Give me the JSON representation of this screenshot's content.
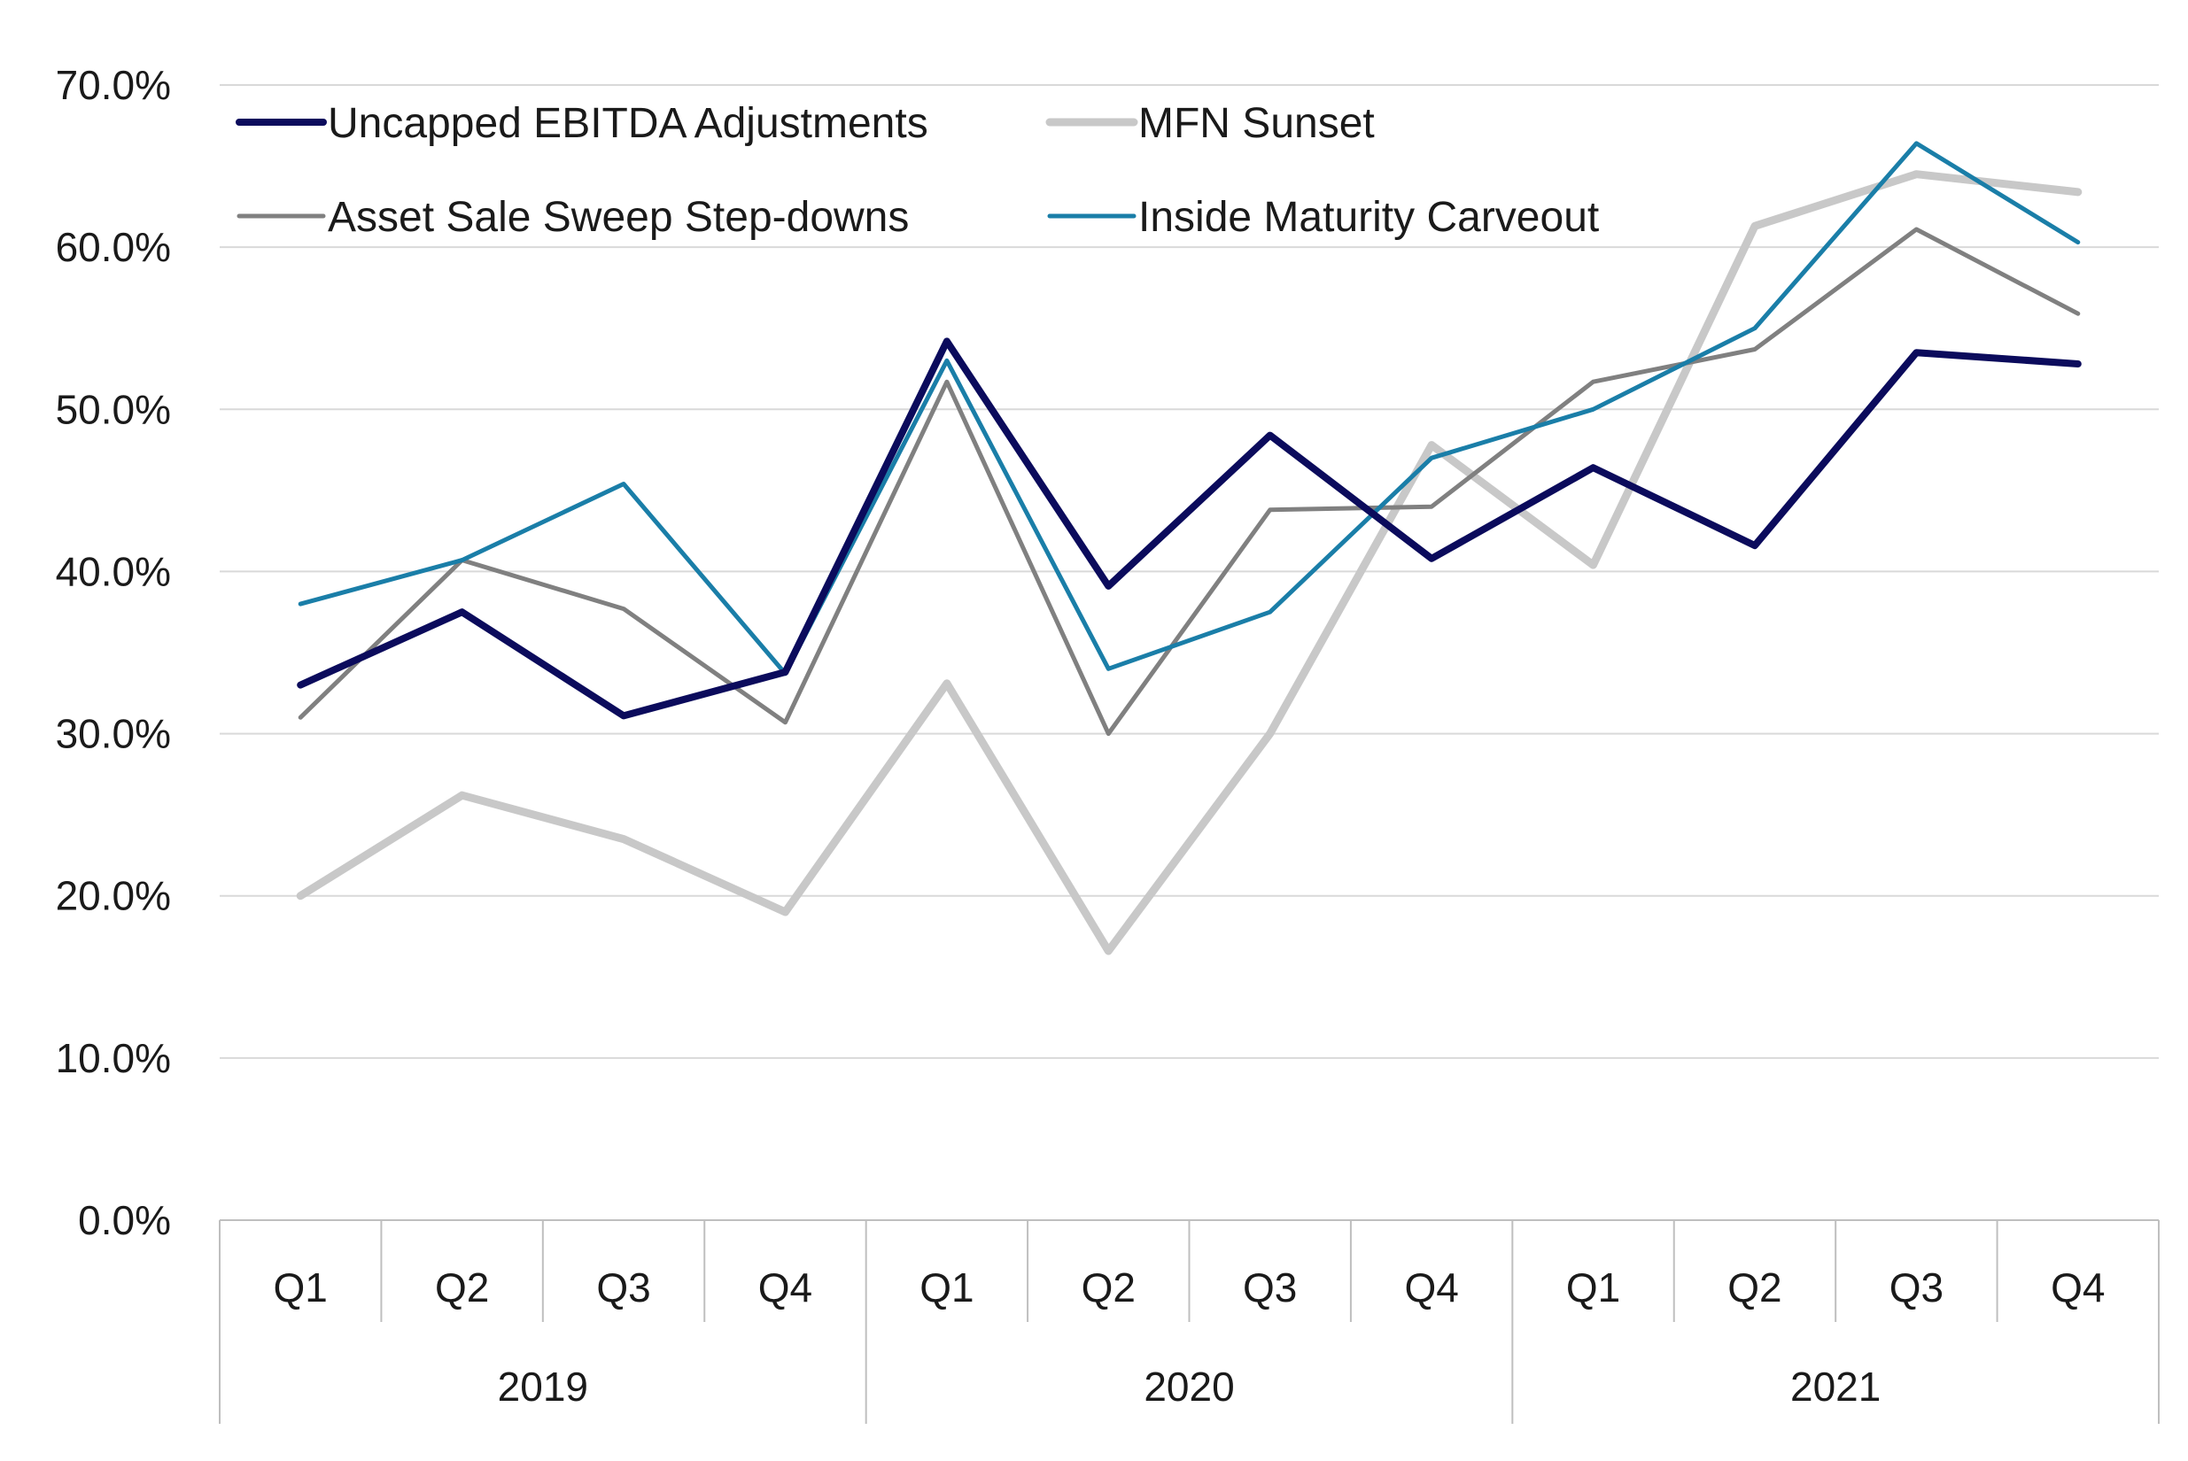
{
  "chart_data": {
    "type": "line",
    "title": "",
    "xlabel": "",
    "ylabel": "",
    "ylim": [
      0,
      0.7
    ],
    "y_tick_labels": [
      "0.0%",
      "10.0%",
      "20.0%",
      "30.0%",
      "40.0%",
      "50.0%",
      "60.0%",
      "70.0%"
    ],
    "y_tick_values": [
      0,
      0.1,
      0.2,
      0.3,
      0.4,
      0.5,
      0.6,
      0.7
    ],
    "grid": true,
    "legend_position": "top-left",
    "categories": [
      "Q1",
      "Q2",
      "Q3",
      "Q4",
      "Q1",
      "Q2",
      "Q3",
      "Q4",
      "Q1",
      "Q2",
      "Q3",
      "Q4"
    ],
    "groups": [
      {
        "label": "2019",
        "count": 4
      },
      {
        "label": "2020",
        "count": 4
      },
      {
        "label": "2021",
        "count": 4
      }
    ],
    "series": [
      {
        "name": "Uncapped EBITDA Adjustments",
        "color": "#0b0b5c",
        "values": [
          0.33,
          0.375,
          0.311,
          0.338,
          0.542,
          0.391,
          0.484,
          0.408,
          0.464,
          0.416,
          0.535,
          0.528
        ]
      },
      {
        "name": "MFN Sunset",
        "color": "#c8c8c8",
        "values": [
          0.2,
          0.262,
          0.235,
          0.19,
          0.331,
          0.166,
          0.3,
          0.478,
          0.404,
          0.613,
          0.645,
          0.634
        ]
      },
      {
        "name": "Asset Sale Sweep Step-downs",
        "color": "#808080",
        "values": [
          0.31,
          0.407,
          0.377,
          0.307,
          0.517,
          0.3,
          0.438,
          0.44,
          0.517,
          0.537,
          0.611,
          0.559
        ]
      },
      {
        "name": "Inside Maturity Carveout",
        "color": "#1a7ea8",
        "values": [
          0.38,
          0.407,
          0.454,
          0.337,
          0.53,
          0.34,
          0.375,
          0.47,
          0.5,
          0.55,
          0.664,
          0.603
        ]
      }
    ]
  }
}
